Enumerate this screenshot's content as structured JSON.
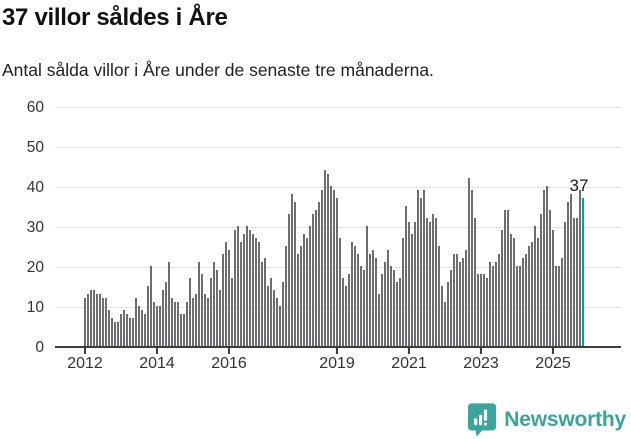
{
  "header": {
    "title": "37 villor såldes i Åre",
    "subtitle": "Antal sålda villor i Åre under de senaste tre månaderna."
  },
  "chart_data": {
    "type": "bar",
    "title": "37 villor såldes i Åre",
    "subtitle": "Antal sålda villor i Åre under de senaste tre månaderna.",
    "xlabel": "",
    "ylabel": "",
    "ylim": [
      0,
      60
    ],
    "grid": "on",
    "legend": "none",
    "frequency": "monthly",
    "start_month": "2012-01",
    "end_month": "2025-11",
    "y_ticks": [
      0,
      10,
      20,
      30,
      40,
      50,
      60
    ],
    "x_tick_labels": [
      "2012",
      "2014",
      "2016",
      "2019",
      "2021",
      "2023",
      "2025"
    ],
    "values": [
      12,
      13,
      14,
      14,
      13,
      13,
      12,
      12,
      9,
      7,
      6,
      6,
      8,
      9,
      8,
      7,
      7,
      12,
      10,
      9,
      8,
      15,
      20,
      11,
      10,
      10,
      14,
      16,
      21,
      12,
      11,
      11,
      8,
      8,
      11,
      17,
      12,
      13,
      21,
      18,
      13,
      12,
      17,
      21,
      19,
      14,
      23,
      26,
      24,
      17,
      29,
      30,
      26,
      28,
      30,
      29,
      28,
      27,
      26,
      21,
      22,
      15,
      17,
      14,
      12,
      10,
      16,
      25,
      33,
      38,
      36,
      23,
      25,
      28,
      27,
      30,
      33,
      34,
      36,
      39,
      44,
      43,
      40,
      39,
      37,
      27,
      17,
      15,
      18,
      26,
      25,
      23,
      20,
      19,
      30,
      23,
      24,
      22,
      13,
      18,
      21,
      24,
      20,
      19,
      16,
      17,
      27,
      35,
      31,
      28,
      31,
      39,
      37,
      39,
      32,
      31,
      33,
      32,
      25,
      15,
      11,
      16,
      19,
      23,
      23,
      21,
      22,
      24,
      42,
      39,
      32,
      18,
      18,
      18,
      17,
      21,
      20,
      21,
      23,
      29,
      34,
      34,
      28,
      27,
      20,
      20,
      22,
      23,
      25,
      26,
      30,
      27,
      33,
      39,
      40,
      34,
      29,
      20,
      20,
      22,
      31,
      36,
      38,
      32,
      32,
      39,
      37
    ],
    "highlight_last_bar": true,
    "last_value_label": "37",
    "colors": {
      "bar": "#6d6d72",
      "highlight": "#00a0a0",
      "gridline": "#e4e4e4",
      "axis": "#3d3d3d",
      "tick_text": "#333333"
    }
  },
  "footer": {
    "brand": "Newsworthy",
    "brand_color": "#3ba49b"
  }
}
